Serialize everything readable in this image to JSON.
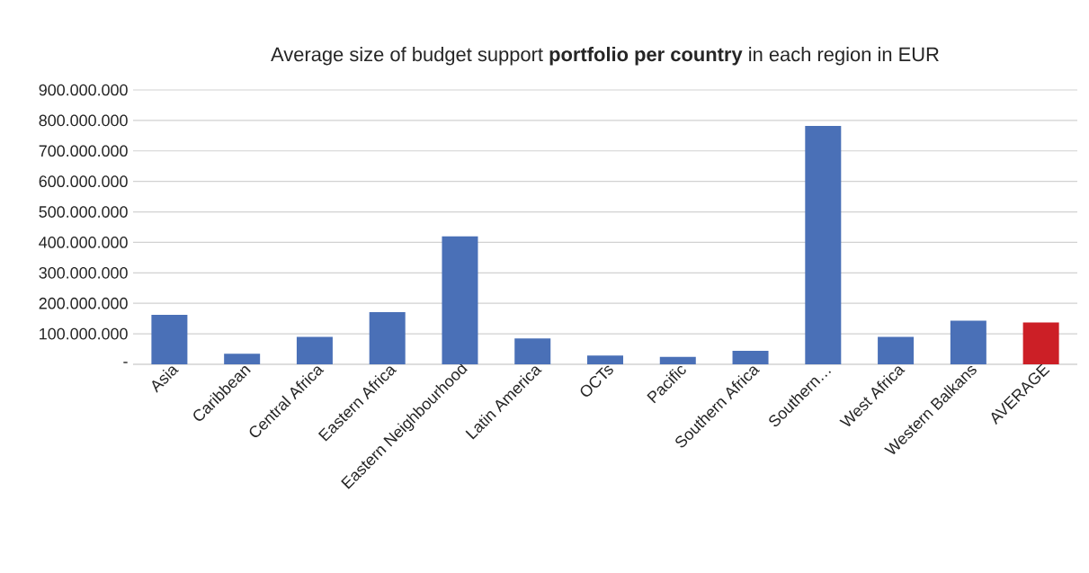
{
  "chart_data": {
    "type": "bar",
    "title": "Average size of budget support **portfolio per country** in each region in EUR",
    "categories": [
      "Asia",
      "Caribbean",
      "Central Africa",
      "Eastern Africa",
      "Eastern Neighbourhood",
      "Latin America",
      "OCTs",
      "Pacific",
      "Southern Africa",
      "Southern…",
      "West Africa",
      "Western Balkans",
      "AVERAGE"
    ],
    "values": [
      162000000,
      35000000,
      90000000,
      171000000,
      420000000,
      85000000,
      29000000,
      24000000,
      44000000,
      782000000,
      90000000,
      143000000,
      137000000
    ],
    "colors": [
      "#4a70b7",
      "#4a70b7",
      "#4a70b7",
      "#4a70b7",
      "#4a70b7",
      "#4a70b7",
      "#4a70b7",
      "#4a70b7",
      "#4a70b7",
      "#4a70b7",
      "#4a70b7",
      "#4a70b7",
      "#cc1f26"
    ],
    "ylim": [
      0,
      900000000
    ],
    "yticks": [
      {
        "value": 0,
        "label": "-"
      },
      {
        "value": 100000000,
        "label": "100.000.000"
      },
      {
        "value": 200000000,
        "label": "200.000.000"
      },
      {
        "value": 300000000,
        "label": "300.000.000"
      },
      {
        "value": 400000000,
        "label": "400.000.000"
      },
      {
        "value": 500000000,
        "label": "500.000.000"
      },
      {
        "value": 600000000,
        "label": "600.000.000"
      },
      {
        "value": 700000000,
        "label": "700.000.000"
      },
      {
        "value": 800000000,
        "label": "800.000.000"
      },
      {
        "value": 900000000,
        "label": "900.000.000"
      }
    ],
    "grid": "y"
  }
}
